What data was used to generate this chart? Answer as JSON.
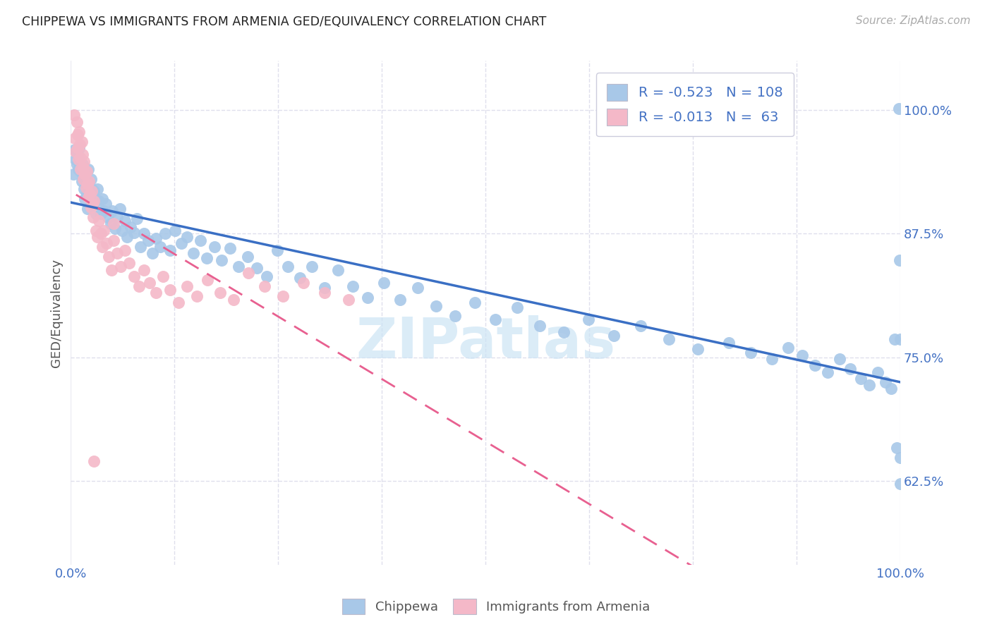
{
  "title": "CHIPPEWA VS IMMIGRANTS FROM ARMENIA GED/EQUIVALENCY CORRELATION CHART",
  "source": "Source: ZipAtlas.com",
  "ylabel": "GED/Equivalency",
  "xlim": [
    0.0,
    1.0
  ],
  "ylim": [
    0.54,
    1.05
  ],
  "yticks": [
    0.625,
    0.75,
    0.875,
    1.0
  ],
  "ytick_labels": [
    "62.5%",
    "75.0%",
    "87.5%",
    "100.0%"
  ],
  "xtick_labels": [
    "0.0%",
    "100.0%"
  ],
  "chippewa_R": -0.523,
  "chippewa_N": 108,
  "armenia_R": -0.013,
  "armenia_N": 63,
  "blue_color": "#a8c8e8",
  "pink_color": "#f4b8c8",
  "blue_line_color": "#3a6fc4",
  "pink_line_color": "#e86090",
  "tick_label_color": "#4472c4",
  "grid_color": "#d8d8e8",
  "chippewa_x": [
    0.003,
    0.005,
    0.006,
    0.007,
    0.008,
    0.009,
    0.01,
    0.011,
    0.012,
    0.013,
    0.014,
    0.015,
    0.016,
    0.017,
    0.018,
    0.019,
    0.02,
    0.021,
    0.022,
    0.023,
    0.024,
    0.025,
    0.027,
    0.028,
    0.03,
    0.032,
    0.034,
    0.036,
    0.038,
    0.04,
    0.042,
    0.045,
    0.048,
    0.05,
    0.053,
    0.056,
    0.059,
    0.062,
    0.065,
    0.068,
    0.072,
    0.076,
    0.08,
    0.084,
    0.088,
    0.093,
    0.098,
    0.103,
    0.108,
    0.114,
    0.12,
    0.126,
    0.133,
    0.14,
    0.148,
    0.156,
    0.164,
    0.173,
    0.182,
    0.192,
    0.202,
    0.213,
    0.224,
    0.236,
    0.249,
    0.262,
    0.276,
    0.291,
    0.306,
    0.322,
    0.34,
    0.358,
    0.377,
    0.397,
    0.418,
    0.44,
    0.463,
    0.487,
    0.512,
    0.538,
    0.565,
    0.594,
    0.624,
    0.655,
    0.687,
    0.721,
    0.756,
    0.793,
    0.82,
    0.845,
    0.865,
    0.882,
    0.897,
    0.912,
    0.927,
    0.94,
    0.952,
    0.963,
    0.973,
    0.982,
    0.989,
    0.993,
    0.996,
    0.998,
    0.999,
    1.0,
    1.0,
    1.0
  ],
  "chippewa_y": [
    0.935,
    0.96,
    0.95,
    0.945,
    0.955,
    0.94,
    0.962,
    0.948,
    0.938,
    0.928,
    0.945,
    0.932,
    0.92,
    0.91,
    0.93,
    0.915,
    0.9,
    0.94,
    0.925,
    0.912,
    0.93,
    0.92,
    0.905,
    0.918,
    0.895,
    0.92,
    0.908,
    0.895,
    0.91,
    0.898,
    0.905,
    0.892,
    0.885,
    0.898,
    0.88,
    0.892,
    0.9,
    0.878,
    0.888,
    0.872,
    0.882,
    0.876,
    0.89,
    0.862,
    0.875,
    0.868,
    0.855,
    0.87,
    0.862,
    0.875,
    0.858,
    0.878,
    0.865,
    0.872,
    0.855,
    0.868,
    0.85,
    0.862,
    0.848,
    0.86,
    0.842,
    0.852,
    0.84,
    0.832,
    0.858,
    0.842,
    0.83,
    0.842,
    0.82,
    0.838,
    0.822,
    0.81,
    0.825,
    0.808,
    0.82,
    0.802,
    0.792,
    0.805,
    0.788,
    0.8,
    0.782,
    0.775,
    0.788,
    0.772,
    0.782,
    0.768,
    0.758,
    0.765,
    0.755,
    0.748,
    0.76,
    0.752,
    0.742,
    0.735,
    0.748,
    0.738,
    0.728,
    0.722,
    0.735,
    0.725,
    0.718,
    0.768,
    0.658,
    1.002,
    0.848,
    0.768,
    0.648,
    0.622
  ],
  "armenia_x": [
    0.004,
    0.005,
    0.006,
    0.007,
    0.008,
    0.008,
    0.009,
    0.01,
    0.011,
    0.012,
    0.012,
    0.013,
    0.014,
    0.015,
    0.015,
    0.016,
    0.017,
    0.018,
    0.019,
    0.02,
    0.021,
    0.022,
    0.023,
    0.024,
    0.025,
    0.026,
    0.027,
    0.028,
    0.03,
    0.032,
    0.034,
    0.036,
    0.038,
    0.04,
    0.043,
    0.046,
    0.049,
    0.052,
    0.056,
    0.06,
    0.065,
    0.07,
    0.076,
    0.082,
    0.088,
    0.095,
    0.103,
    0.111,
    0.12,
    0.13,
    0.14,
    0.152,
    0.165,
    0.18,
    0.196,
    0.214,
    0.234,
    0.256,
    0.28,
    0.306,
    0.335,
    0.052,
    0.028
  ],
  "armenia_y": [
    0.995,
    0.972,
    0.958,
    0.988,
    0.975,
    0.962,
    0.95,
    0.978,
    0.965,
    0.952,
    0.94,
    0.968,
    0.955,
    0.942,
    0.93,
    0.948,
    0.935,
    0.922,
    0.938,
    0.925,
    0.912,
    0.928,
    0.915,
    0.902,
    0.918,
    0.905,
    0.892,
    0.908,
    0.878,
    0.872,
    0.888,
    0.875,
    0.862,
    0.878,
    0.865,
    0.852,
    0.838,
    0.868,
    0.855,
    0.842,
    0.858,
    0.845,
    0.832,
    0.822,
    0.838,
    0.825,
    0.815,
    0.832,
    0.818,
    0.805,
    0.822,
    0.812,
    0.828,
    0.815,
    0.808,
    0.835,
    0.822,
    0.812,
    0.825,
    0.815,
    0.808,
    0.885,
    0.645
  ],
  "watermark_color": "#cce4f5",
  "watermark_alpha": 0.7
}
